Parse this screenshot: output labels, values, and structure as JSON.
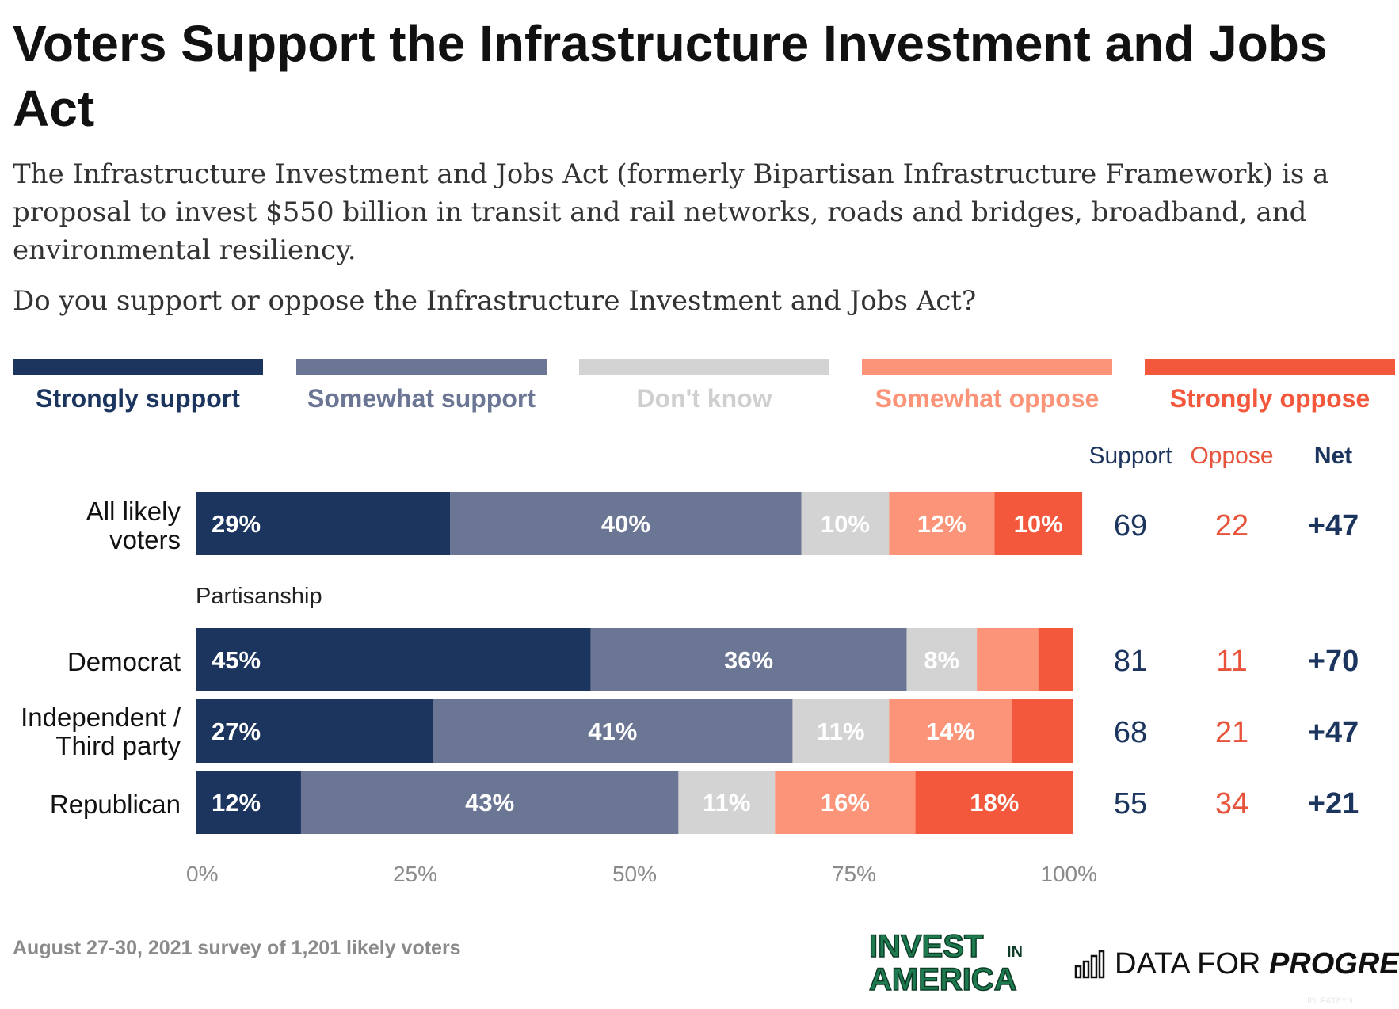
{
  "header": {
    "title": "Voters Support the Infrastructure Investment and Jobs Act",
    "subtitle": "The Infrastructure Investment and Jobs Act (formerly Bipartisan Infrastructure Framework) is a proposal to invest $550 billion in transit and rail networks, roads and bridges, broadband, and environmental resiliency.",
    "question": "Do you support or oppose the Infrastructure Investment and Jobs Act?"
  },
  "legend": [
    {
      "label": "Strongly support",
      "color": "#1c355e"
    },
    {
      "label": "Somewhat support",
      "color": "#6b7594"
    },
    {
      "label": "Don't know",
      "color": "#d3d3d3"
    },
    {
      "label": "Somewhat oppose",
      "color": "#fc9479"
    },
    {
      "label": "Strongly oppose",
      "color": "#f4583c"
    }
  ],
  "columns": {
    "support": "Support",
    "oppose": "Oppose",
    "net": "Net"
  },
  "colors": {
    "support": "#1c355e",
    "oppose": "#e8543b",
    "axis": "#8a8a8a"
  },
  "group_label": "Partisanship",
  "chart_data": {
    "type": "bar",
    "orientation": "horizontal",
    "stacked": true,
    "xlim": [
      0,
      100
    ],
    "x_ticks": [
      "0%",
      "25%",
      "50%",
      "75%",
      "100%"
    ],
    "categories": [
      "All likely voters",
      "Democrat",
      "Independent / Third party",
      "Republican"
    ],
    "series": [
      {
        "name": "Strongly support",
        "values": [
          29,
          45,
          27,
          12
        ],
        "labels": [
          "29%",
          "45%",
          "27%",
          "12%"
        ]
      },
      {
        "name": "Somewhat support",
        "values": [
          40,
          36,
          41,
          43
        ],
        "labels": [
          "40%",
          "36%",
          "41%",
          "43%"
        ]
      },
      {
        "name": "Don't know",
        "values": [
          10,
          8,
          11,
          11
        ],
        "labels": [
          "10%",
          "8%",
          "11%",
          "11%"
        ]
      },
      {
        "name": "Somewhat oppose",
        "values": [
          12,
          7,
          14,
          16
        ],
        "labels": [
          "12%",
          "",
          "14%",
          "16%"
        ]
      },
      {
        "name": "Strongly oppose",
        "values": [
          10,
          4,
          7,
          18
        ],
        "labels": [
          "10%",
          "",
          "",
          "18%"
        ]
      }
    ],
    "totals": {
      "support": [
        "69",
        "81",
        "68",
        "55"
      ],
      "oppose": [
        "22",
        "11",
        "21",
        "34"
      ],
      "net": [
        "+47",
        "+70",
        "+47",
        "+21"
      ]
    }
  },
  "footer": {
    "note": "August 27-30, 2021 survey of 1,201 likely voters"
  },
  "logos": {
    "invest_line1": "INVEST",
    "invest_in": "IN",
    "invest_line2": "AMERICA",
    "dfp_data": "DATA FOR",
    "dfp_progress": "PROGRESS"
  },
  "chart_id": "ID: F4T8YN"
}
